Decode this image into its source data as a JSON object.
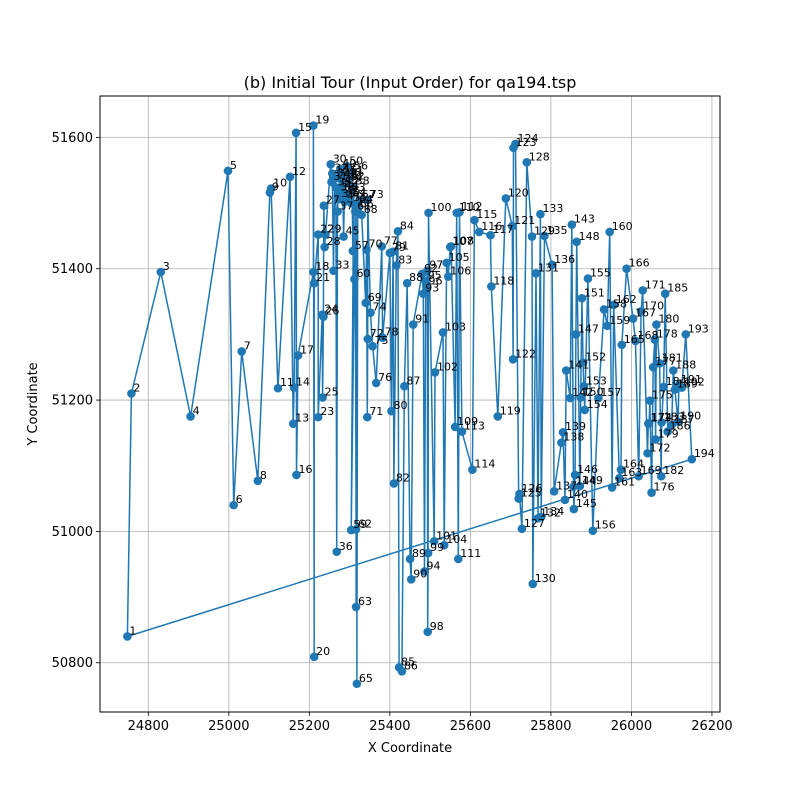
{
  "chart_data": {
    "type": "line",
    "title": "(b) Initial Tour (Input Order) for qa194.tsp",
    "xlabel": "X Coordinate",
    "ylabel": "Y Coordinate",
    "xlim": [
      24680,
      26220
    ],
    "ylim": [
      50725,
      51663
    ],
    "xticks": [
      24800,
      25000,
      25200,
      25400,
      25600,
      25800,
      26000,
      26200
    ],
    "yticks": [
      50800,
      51000,
      51200,
      51400,
      51600
    ],
    "grid": true,
    "closed_tour": true,
    "marker": "circle",
    "series": [
      {
        "color": "#1f77b4",
        "points": [
          {
            "label": "1",
            "x": 24748,
            "y": 50840
          },
          {
            "label": "2",
            "x": 24758,
            "y": 51210
          },
          {
            "label": "3",
            "x": 24831,
            "y": 51395
          },
          {
            "label": "4",
            "x": 24905,
            "y": 51175
          },
          {
            "label": "5",
            "x": 24998,
            "y": 51549
          },
          {
            "label": "6",
            "x": 25012,
            "y": 51040
          },
          {
            "label": "7",
            "x": 25032,
            "y": 51274
          },
          {
            "label": "8",
            "x": 25072,
            "y": 51077
          },
          {
            "label": "9",
            "x": 25102,
            "y": 51516
          },
          {
            "label": "10",
            "x": 25105,
            "y": 51522
          },
          {
            "label": "11",
            "x": 25122,
            "y": 51218
          },
          {
            "label": "12",
            "x": 25152,
            "y": 51540
          },
          {
            "label": "13",
            "x": 25160,
            "y": 51164
          },
          {
            "label": "14",
            "x": 25162,
            "y": 51219
          },
          {
            "label": "15",
            "x": 25167,
            "y": 51607
          },
          {
            "label": "16",
            "x": 25168,
            "y": 51086
          },
          {
            "label": "17",
            "x": 25172,
            "y": 51268
          },
          {
            "label": "18",
            "x": 25210,
            "y": 51395
          },
          {
            "label": "19",
            "x": 25210,
            "y": 51618
          },
          {
            "label": "20",
            "x": 25212,
            "y": 50809
          },
          {
            "label": "21",
            "x": 25212,
            "y": 51378
          },
          {
            "label": "22",
            "x": 25222,
            "y": 51452
          },
          {
            "label": "23",
            "x": 25222,
            "y": 51174
          },
          {
            "label": "24",
            "x": 25232,
            "y": 51330
          },
          {
            "label": "25",
            "x": 25233,
            "y": 51204
          },
          {
            "label": "26",
            "x": 25235,
            "y": 51327
          },
          {
            "label": "27",
            "x": 25236,
            "y": 51496
          },
          {
            "label": "28",
            "x": 25238,
            "y": 51433
          },
          {
            "label": "29",
            "x": 25240,
            "y": 51452
          },
          {
            "label": "30",
            "x": 25253,
            "y": 51559
          },
          {
            "label": "31",
            "x": 25255,
            "y": 51532
          },
          {
            "label": "32",
            "x": 25257,
            "y": 51545
          },
          {
            "label": "33",
            "x": 25260,
            "y": 51397
          },
          {
            "label": "34",
            "x": 25263,
            "y": 51537
          },
          {
            "label": "35",
            "x": 25266,
            "y": 51524
          },
          {
            "label": "36",
            "x": 25268,
            "y": 50969
          },
          {
            "label": "37",
            "x": 25270,
            "y": 51487
          },
          {
            "label": "38",
            "x": 25272,
            "y": 51516
          },
          {
            "label": "39",
            "x": 25275,
            "y": 51506
          },
          {
            "label": "40",
            "x": 25277,
            "y": 51552
          },
          {
            "label": "41",
            "x": 25278,
            "y": 51545
          },
          {
            "label": "42",
            "x": 25280,
            "y": 51535
          },
          {
            "label": "43",
            "x": 25282,
            "y": 51526
          },
          {
            "label": "44",
            "x": 25283,
            "y": 51518
          },
          {
            "label": "45",
            "x": 25285,
            "y": 51449
          },
          {
            "label": "46",
            "x": 25287,
            "y": 51510
          },
          {
            "label": "47",
            "x": 25288,
            "y": 51502
          },
          {
            "label": "48",
            "x": 25290,
            "y": 51538
          },
          {
            "label": "49",
            "x": 25292,
            "y": 51530
          },
          {
            "label": "50",
            "x": 25294,
            "y": 51556
          },
          {
            "label": "51",
            "x": 25296,
            "y": 51541
          },
          {
            "label": "52",
            "x": 25298,
            "y": 51533
          },
          {
            "label": "53",
            "x": 25300,
            "y": 51515
          },
          {
            "label": "54",
            "x": 25302,
            "y": 51508
          },
          {
            "label": "55",
            "x": 25304,
            "y": 51500
          },
          {
            "label": "56",
            "x": 25306,
            "y": 51548
          },
          {
            "label": "57",
            "x": 25308,
            "y": 51427
          },
          {
            "label": "58",
            "x": 25310,
            "y": 51525
          },
          {
            "label": "59",
            "x": 25304,
            "y": 51002
          },
          {
            "label": "60",
            "x": 25312,
            "y": 51384
          },
          {
            "label": "61",
            "x": 25314,
            "y": 51487
          },
          {
            "label": "62",
            "x": 25316,
            "y": 51003
          },
          {
            "label": "63",
            "x": 25316,
            "y": 50885
          },
          {
            "label": "64",
            "x": 25318,
            "y": 51497
          },
          {
            "label": "65",
            "x": 25318,
            "y": 50768
          },
          {
            "label": "66",
            "x": 25320,
            "y": 51490
          },
          {
            "label": "67",
            "x": 25325,
            "y": 51505
          },
          {
            "label": "68",
            "x": 25330,
            "y": 51482
          },
          {
            "label": "69",
            "x": 25340,
            "y": 51348
          },
          {
            "label": "70",
            "x": 25342,
            "y": 51429
          },
          {
            "label": "71",
            "x": 25344,
            "y": 51174
          },
          {
            "label": "72",
            "x": 25345,
            "y": 51293
          },
          {
            "label": "73",
            "x": 25345,
            "y": 51505
          },
          {
            "label": "74",
            "x": 25352,
            "y": 51333
          },
          {
            "label": "75",
            "x": 25357,
            "y": 51282
          },
          {
            "label": "76",
            "x": 25366,
            "y": 51226
          },
          {
            "label": "77",
            "x": 25380,
            "y": 51434
          },
          {
            "label": "78",
            "x": 25382,
            "y": 51295
          },
          {
            "label": "79",
            "x": 25400,
            "y": 51424
          },
          {
            "label": "80",
            "x": 25404,
            "y": 51183
          },
          {
            "label": "81",
            "x": 25408,
            "y": 51426
          },
          {
            "label": "82",
            "x": 25410,
            "y": 51073
          },
          {
            "label": "83",
            "x": 25416,
            "y": 51405
          },
          {
            "label": "84",
            "x": 25420,
            "y": 51457
          },
          {
            "label": "85",
            "x": 25423,
            "y": 50793
          },
          {
            "label": "86",
            "x": 25430,
            "y": 50787
          },
          {
            "label": "87",
            "x": 25436,
            "y": 51221
          },
          {
            "label": "88",
            "x": 25443,
            "y": 51378
          },
          {
            "label": "89",
            "x": 25450,
            "y": 50958
          },
          {
            "label": "90",
            "x": 25453,
            "y": 50927
          },
          {
            "label": "91",
            "x": 25458,
            "y": 51315
          },
          {
            "label": "92",
            "x": 25480,
            "y": 51392
          },
          {
            "label": "93",
            "x": 25483,
            "y": 51362
          },
          {
            "label": "94",
            "x": 25486,
            "y": 50939
          },
          {
            "label": "95",
            "x": 25489,
            "y": 51381
          },
          {
            "label": "96",
            "x": 25491,
            "y": 51373
          },
          {
            "label": "97",
            "x": 25493,
            "y": 51397
          },
          {
            "label": "98",
            "x": 25494,
            "y": 50847
          },
          {
            "label": "99",
            "x": 25495,
            "y": 50967
          },
          {
            "label": "100",
            "x": 25496,
            "y": 51485
          },
          {
            "label": "101",
            "x": 25510,
            "y": 50985
          },
          {
            "label": "102",
            "x": 25512,
            "y": 51242
          },
          {
            "label": "103",
            "x": 25532,
            "y": 51303
          },
          {
            "label": "104",
            "x": 25535,
            "y": 50979
          },
          {
            "label": "105",
            "x": 25541,
            "y": 51409
          },
          {
            "label": "106",
            "x": 25545,
            "y": 51388
          },
          {
            "label": "107",
            "x": 25550,
            "y": 51433
          },
          {
            "label": "108",
            "x": 25552,
            "y": 51434
          },
          {
            "label": "109",
            "x": 25562,
            "y": 51159
          },
          {
            "label": "110",
            "x": 25566,
            "y": 51485
          },
          {
            "label": "111",
            "x": 25570,
            "y": 50958
          },
          {
            "label": "112",
            "x": 25573,
            "y": 51486
          },
          {
            "label": "113",
            "x": 25579,
            "y": 51152
          },
          {
            "label": "114",
            "x": 25605,
            "y": 51094
          },
          {
            "label": "115",
            "x": 25610,
            "y": 51474
          },
          {
            "label": "116",
            "x": 25622,
            "y": 51456
          },
          {
            "label": "117",
            "x": 25650,
            "y": 51451
          },
          {
            "label": "118",
            "x": 25652,
            "y": 51373
          },
          {
            "label": "119",
            "x": 25668,
            "y": 51175
          },
          {
            "label": "120",
            "x": 25688,
            "y": 51507
          },
          {
            "label": "121",
            "x": 25704,
            "y": 51465
          },
          {
            "label": "122",
            "x": 25706,
            "y": 51262
          },
          {
            "label": "123",
            "x": 25707,
            "y": 51584
          },
          {
            "label": "124",
            "x": 25712,
            "y": 51590
          },
          {
            "label": "125",
            "x": 25720,
            "y": 51050
          },
          {
            "label": "126",
            "x": 25722,
            "y": 51057
          },
          {
            "label": "127",
            "x": 25728,
            "y": 51004
          },
          {
            "label": "128",
            "x": 25740,
            "y": 51562
          },
          {
            "label": "129",
            "x": 25753,
            "y": 51449
          },
          {
            "label": "130",
            "x": 25755,
            "y": 50920
          },
          {
            "label": "131",
            "x": 25763,
            "y": 51393
          },
          {
            "label": "132",
            "x": 25768,
            "y": 51020
          },
          {
            "label": "133",
            "x": 25774,
            "y": 51483
          },
          {
            "label": "134",
            "x": 25776,
            "y": 51022
          },
          {
            "label": "135",
            "x": 25784,
            "y": 51450
          },
          {
            "label": "136",
            "x": 25803,
            "y": 51406
          },
          {
            "label": "137",
            "x": 25808,
            "y": 51061
          },
          {
            "label": "138",
            "x": 25826,
            "y": 51135
          },
          {
            "label": "139",
            "x": 25830,
            "y": 51151
          },
          {
            "label": "140",
            "x": 25835,
            "y": 51048
          },
          {
            "label": "141",
            "x": 25838,
            "y": 51245
          },
          {
            "label": "142",
            "x": 25848,
            "y": 51203
          },
          {
            "label": "143",
            "x": 25852,
            "y": 51467
          },
          {
            "label": "144",
            "x": 25856,
            "y": 51068
          },
          {
            "label": "145",
            "x": 25857,
            "y": 51034
          },
          {
            "label": "146",
            "x": 25860,
            "y": 51086
          },
          {
            "label": "147",
            "x": 25862,
            "y": 51300
          },
          {
            "label": "148",
            "x": 25864,
            "y": 51441
          },
          {
            "label": "149",
            "x": 25872,
            "y": 51069
          },
          {
            "label": "150",
            "x": 25874,
            "y": 51204
          },
          {
            "label": "151",
            "x": 25877,
            "y": 51355
          },
          {
            "label": "152",
            "x": 25880,
            "y": 51257
          },
          {
            "label": "153",
            "x": 25882,
            "y": 51221
          },
          {
            "label": "154",
            "x": 25884,
            "y": 51185
          },
          {
            "label": "155",
            "x": 25892,
            "y": 51385
          },
          {
            "label": "156",
            "x": 25904,
            "y": 51001
          },
          {
            "label": "157",
            "x": 25918,
            "y": 51203
          },
          {
            "label": "158",
            "x": 25932,
            "y": 51338
          },
          {
            "label": "159",
            "x": 25940,
            "y": 51313
          },
          {
            "label": "160",
            "x": 25946,
            "y": 51456
          },
          {
            "label": "161",
            "x": 25952,
            "y": 51067
          },
          {
            "label": "162",
            "x": 25956,
            "y": 51345
          },
          {
            "label": "163",
            "x": 25970,
            "y": 51081
          },
          {
            "label": "164",
            "x": 25974,
            "y": 51094
          },
          {
            "label": "165",
            "x": 25976,
            "y": 51284
          },
          {
            "label": "166",
            "x": 25988,
            "y": 51400
          },
          {
            "label": "167",
            "x": 26004,
            "y": 51324
          },
          {
            "label": "168",
            "x": 26010,
            "y": 51290
          },
          {
            "label": "169",
            "x": 26018,
            "y": 51084
          },
          {
            "label": "170",
            "x": 26024,
            "y": 51335
          },
          {
            "label": "171",
            "x": 26028,
            "y": 51367
          },
          {
            "label": "172",
            "x": 26040,
            "y": 51119
          },
          {
            "label": "173",
            "x": 26042,
            "y": 51164
          },
          {
            "label": "174",
            "x": 26044,
            "y": 51165
          },
          {
            "label": "175",
            "x": 26046,
            "y": 51199
          },
          {
            "label": "176",
            "x": 26050,
            "y": 51059
          },
          {
            "label": "177",
            "x": 26054,
            "y": 51250
          },
          {
            "label": "178",
            "x": 26058,
            "y": 51292
          },
          {
            "label": "179",
            "x": 26060,
            "y": 51140
          },
          {
            "label": "180",
            "x": 26062,
            "y": 51315
          },
          {
            "label": "181",
            "x": 26070,
            "y": 51256
          },
          {
            "label": "182",
            "x": 26074,
            "y": 51084
          },
          {
            "label": "183",
            "x": 26075,
            "y": 51166
          },
          {
            "label": "184",
            "x": 26080,
            "y": 51220
          },
          {
            "label": "185",
            "x": 26084,
            "y": 51362
          },
          {
            "label": "186",
            "x": 26090,
            "y": 51152
          },
          {
            "label": "187",
            "x": 26100,
            "y": 51162
          },
          {
            "label": "188",
            "x": 26104,
            "y": 51245
          },
          {
            "label": "189",
            "x": 26108,
            "y": 51216
          },
          {
            "label": "190",
            "x": 26116,
            "y": 51167
          },
          {
            "label": "191",
            "x": 26118,
            "y": 51223
          },
          {
            "label": "192",
            "x": 26125,
            "y": 51219
          },
          {
            "label": "193",
            "x": 26135,
            "y": 51300
          },
          {
            "label": "194",
            "x": 26150,
            "y": 51110
          }
        ]
      }
    ]
  }
}
